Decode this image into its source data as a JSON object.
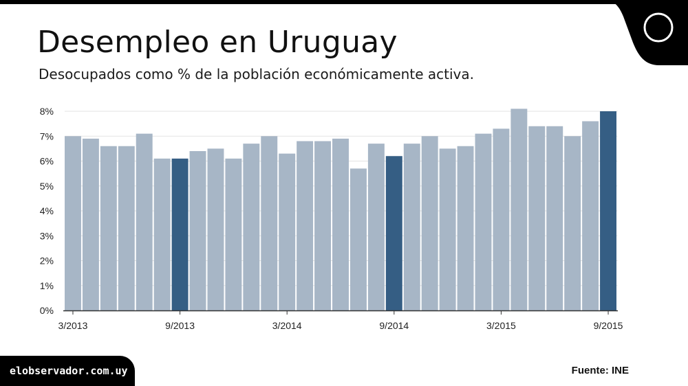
{
  "header": {
    "title": "Desempleo en Uruguay",
    "subtitle": "Desocupados como % de la población económicamente activa."
  },
  "footer": {
    "site": "elobservador.com.uy",
    "source": "Fuente: INE"
  },
  "colors": {
    "bar": "#a7b6c6",
    "bar_highlight": "#355e84",
    "text": "#222222",
    "grid": "#e3e3e3",
    "axis": "#333333"
  },
  "chart_data": {
    "type": "bar",
    "title": "Desempleo en Uruguay",
    "subtitle": "Desocupados como % de la población económicamente activa.",
    "xlabel": "",
    "ylabel": "",
    "ylim": [
      0,
      8
    ],
    "grid": true,
    "yticks": [
      "0%",
      "1%",
      "2%",
      "3%",
      "4%",
      "5%",
      "6%",
      "7%",
      "8%"
    ],
    "xtick_labels": [
      {
        "index": 0,
        "label": "3/2013"
      },
      {
        "index": 6,
        "label": "9/2013"
      },
      {
        "index": 12,
        "label": "3/2014"
      },
      {
        "index": 18,
        "label": "9/2014"
      },
      {
        "index": 24,
        "label": "3/2015"
      },
      {
        "index": 30,
        "label": "9/2015"
      }
    ],
    "categories": [
      "3/2013",
      "4/2013",
      "5/2013",
      "6/2013",
      "7/2013",
      "8/2013",
      "9/2013",
      "10/2013",
      "11/2013",
      "12/2013",
      "1/2014",
      "2/2014",
      "3/2014",
      "4/2014",
      "5/2014",
      "6/2014",
      "7/2014",
      "8/2014",
      "9/2014",
      "10/2014",
      "11/2014",
      "12/2014",
      "1/2015",
      "2/2015",
      "3/2015",
      "4/2015",
      "5/2015",
      "6/2015",
      "7/2015",
      "8/2015",
      "9/2015"
    ],
    "values": [
      7.0,
      6.9,
      6.6,
      6.6,
      7.1,
      6.1,
      6.1,
      6.4,
      6.5,
      6.1,
      6.7,
      7.0,
      6.3,
      6.8,
      6.8,
      6.9,
      5.7,
      6.7,
      6.2,
      6.7,
      7.0,
      6.5,
      6.6,
      7.1,
      7.3,
      8.1,
      7.4,
      7.4,
      7.0,
      7.6,
      8.0
    ],
    "highlighted": [
      6,
      18,
      30
    ],
    "units": "%"
  }
}
